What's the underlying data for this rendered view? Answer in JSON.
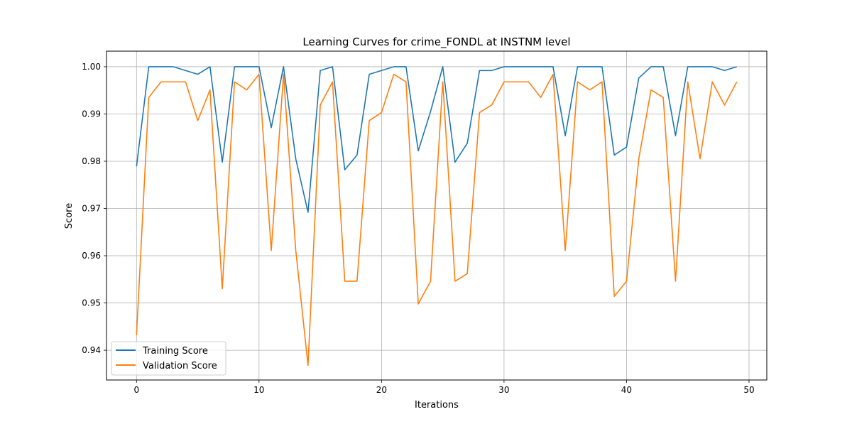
{
  "chart_data": {
    "type": "line",
    "title": "Learning Curves for crime_FONDL at INSTNM level",
    "xlabel": "Iterations",
    "ylabel": "Score",
    "xlim": [
      -2.45,
      51.45
    ],
    "ylim": [
      0.9337,
      1.0033
    ],
    "x_ticks": [
      0,
      10,
      20,
      30,
      40,
      50
    ],
    "y_ticks": [
      0.94,
      0.95,
      0.96,
      0.97,
      0.98,
      0.99,
      1.0
    ],
    "x_tick_labels": [
      "0",
      "10",
      "20",
      "30",
      "40",
      "50"
    ],
    "y_tick_labels": [
      "0.94",
      "0.95",
      "0.96",
      "0.97",
      "0.98",
      "0.99",
      "1.00"
    ],
    "grid": true,
    "legend_position": "lower-left",
    "x": [
      0,
      1,
      2,
      3,
      4,
      5,
      6,
      7,
      8,
      9,
      10,
      11,
      12,
      13,
      14,
      15,
      16,
      17,
      18,
      19,
      20,
      21,
      22,
      23,
      24,
      25,
      26,
      27,
      28,
      29,
      30,
      31,
      32,
      33,
      34,
      35,
      36,
      37,
      38,
      39,
      40,
      41,
      42,
      43,
      44,
      45,
      46,
      47,
      48,
      49
    ],
    "series": [
      {
        "name": "Training Score",
        "color": "#1f77b4",
        "values": [
          0.9789,
          1.0,
          1.0,
          1.0,
          0.9992,
          0.9984,
          1.0,
          0.9798,
          1.0,
          1.0,
          1.0,
          0.9871,
          1.0,
          0.9805,
          0.9692,
          0.9992,
          1.0,
          0.9782,
          0.9813,
          0.9984,
          0.9992,
          1.0,
          1.0,
          0.9822,
          0.9905,
          1.0,
          0.9798,
          0.9838,
          0.9992,
          0.9992,
          1.0,
          1.0,
          1.0,
          1.0,
          1.0,
          0.9854,
          1.0,
          1.0,
          1.0,
          0.9813,
          0.983,
          0.9976,
          1.0,
          1.0,
          0.9854,
          1.0,
          1.0,
          1.0,
          0.9992,
          1.0
        ]
      },
      {
        "name": "Validation Score",
        "color": "#ff7f0e",
        "values": [
          0.9432,
          0.9935,
          0.9968,
          0.9968,
          0.9968,
          0.9886,
          0.9951,
          0.953,
          0.9968,
          0.9951,
          0.9984,
          0.9611,
          0.9984,
          0.9611,
          0.9368,
          0.9919,
          0.9968,
          0.9546,
          0.9546,
          0.9886,
          0.9903,
          0.9984,
          0.9968,
          0.9498,
          0.9546,
          0.9968,
          0.9546,
          0.9562,
          0.9903,
          0.9919,
          0.9968,
          0.9968,
          0.9968,
          0.9935,
          0.9984,
          0.9611,
          0.9968,
          0.9951,
          0.9968,
          0.9514,
          0.9546,
          0.9805,
          0.9951,
          0.9935,
          0.9546,
          0.9968,
          0.9805,
          0.9968,
          0.9919,
          0.9968
        ]
      }
    ]
  }
}
